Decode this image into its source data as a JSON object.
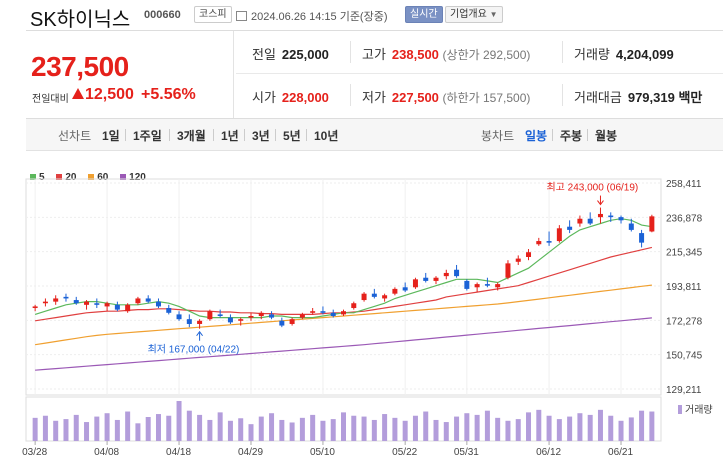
{
  "header": {
    "name": "SK하이닉스",
    "code": "000660",
    "market": "코스피",
    "timestamp": "2024.06.26 14:15 기준(장중)",
    "live_label": "실시간",
    "company_label": "기업개요"
  },
  "price": {
    "current": "237,500",
    "change_label": "전일대비",
    "change": "12,500",
    "change_pct": "+5.56%",
    "up_color": "#e5211b",
    "down_color": "#1b62d6"
  },
  "stats": {
    "prev_close_label": "전일",
    "prev_close": "225,000",
    "high_label": "고가",
    "high": "238,500",
    "upper_limit": "(상한가 292,500)",
    "volume_label": "거래량",
    "volume": "4,204,099",
    "open_label": "시가",
    "open": "228,000",
    "low_label": "저가",
    "low": "227,500",
    "lower_limit": "(하한가 157,500)",
    "amount_label": "거래대금",
    "amount": "979,319 백만"
  },
  "tabs": {
    "line_label": "선차트",
    "line_items": [
      "1일",
      "1주일",
      "3개월",
      "1년",
      "3년",
      "5년",
      "10년"
    ],
    "candle_label": "봉차트",
    "candle_items": [
      "일봉",
      "주봉",
      "월봉"
    ],
    "active_candle": 0
  },
  "chart_data": {
    "type": "candlestick",
    "legend": [
      {
        "name": "5",
        "color": "#5cb85c"
      },
      {
        "name": "20",
        "color": "#e04040"
      },
      {
        "name": "60",
        "color": "#f0a030"
      },
      {
        "name": "120",
        "color": "#9b59b6"
      }
    ],
    "y_ticks": [
      "258,411",
      "236,878",
      "215,345",
      "193,811",
      "172,278",
      "150,745",
      "129,211"
    ],
    "y_tick_values": [
      258411,
      236878,
      215345,
      193811,
      172278,
      150745,
      129211
    ],
    "x_ticks": [
      "03/28",
      "04/08",
      "04/18",
      "04/29",
      "05/10",
      "05/22",
      "05/31",
      "06/12",
      "06/21"
    ],
    "x_tick_index": [
      0,
      7,
      14,
      21,
      28,
      36,
      42,
      50,
      57
    ],
    "volume_label": "거래량",
    "high_annotation": "최고 243,000 (06/19)",
    "high_index": 55,
    "low_annotation": "최저 167,000 (04/22)",
    "low_index": 16,
    "candles": [
      [
        180000,
        182000,
        178000,
        181000
      ],
      [
        183000,
        186000,
        181000,
        184000
      ],
      [
        184000,
        188000,
        182000,
        186000
      ],
      [
        187000,
        189000,
        184000,
        186000
      ],
      [
        185000,
        187000,
        182000,
        183000
      ],
      [
        182000,
        185000,
        179000,
        184000
      ],
      [
        183000,
        186000,
        180000,
        182000
      ],
      [
        181000,
        184000,
        178000,
        183000
      ],
      [
        182000,
        184000,
        178000,
        179000
      ],
      [
        178000,
        183000,
        177000,
        182000
      ],
      [
        183000,
        187000,
        182000,
        186000
      ],
      [
        186000,
        188000,
        183000,
        184000
      ],
      [
        184000,
        186000,
        180000,
        181000
      ],
      [
        180000,
        182000,
        176000,
        177000
      ],
      [
        176000,
        178000,
        172000,
        173000
      ],
      [
        173000,
        176000,
        168000,
        170000
      ],
      [
        170000,
        173000,
        167000,
        172000
      ],
      [
        173000,
        179000,
        172000,
        178000
      ],
      [
        176000,
        179000,
        174000,
        175000
      ],
      [
        174000,
        176000,
        170000,
        171000
      ],
      [
        172000,
        174000,
        169000,
        173000
      ],
      [
        174000,
        177000,
        172000,
        175000
      ],
      [
        175000,
        178000,
        173000,
        177000
      ],
      [
        176000,
        178000,
        173000,
        174000
      ],
      [
        172000,
        174000,
        168000,
        169000
      ],
      [
        170000,
        174000,
        169000,
        173000
      ],
      [
        174000,
        177000,
        173000,
        176000
      ],
      [
        177000,
        180000,
        176000,
        178000
      ],
      [
        178000,
        181000,
        176000,
        177000
      ],
      [
        177000,
        179000,
        174000,
        175000
      ],
      [
        176000,
        179000,
        175000,
        178000
      ],
      [
        180000,
        184000,
        179000,
        183000
      ],
      [
        185000,
        190000,
        184000,
        189000
      ],
      [
        189000,
        192000,
        186000,
        187000
      ],
      [
        186000,
        189000,
        184000,
        188000
      ],
      [
        189000,
        193000,
        188000,
        192000
      ],
      [
        193000,
        196000,
        190000,
        191000
      ],
      [
        193000,
        199000,
        192000,
        198000
      ],
      [
        199000,
        202000,
        196000,
        197000
      ],
      [
        197000,
        200000,
        195000,
        199000
      ],
      [
        200000,
        204000,
        198000,
        202000
      ],
      [
        204000,
        207000,
        199000,
        200000
      ],
      [
        197000,
        198000,
        191000,
        192000
      ],
      [
        193000,
        196000,
        190000,
        195000
      ],
      [
        195000,
        199000,
        193000,
        194000
      ],
      [
        193000,
        196000,
        191000,
        195000
      ],
      [
        199000,
        210000,
        198000,
        208000
      ],
      [
        209000,
        213000,
        207000,
        211000
      ],
      [
        212000,
        217000,
        210000,
        215000
      ],
      [
        220000,
        224000,
        219000,
        222000
      ],
      [
        222000,
        228000,
        219000,
        221000
      ],
      [
        222000,
        232000,
        221000,
        230000
      ],
      [
        231000,
        235000,
        227000,
        229000
      ],
      [
        233000,
        238000,
        231000,
        236000
      ],
      [
        236000,
        240000,
        232000,
        233000
      ],
      [
        237000,
        243000,
        233000,
        239000
      ],
      [
        238000,
        240000,
        234000,
        237000
      ],
      [
        237000,
        238000,
        233000,
        235000
      ],
      [
        233000,
        236000,
        228000,
        229000
      ],
      [
        227000,
        229000,
        218000,
        221000
      ],
      [
        228000,
        238500,
        227500,
        237500
      ]
    ],
    "ma5": [
      176000,
      178000,
      180000,
      182000,
      183000,
      184000,
      184000,
      183000,
      182000,
      182000,
      182000,
      183000,
      184000,
      183000,
      181000,
      178000,
      175000,
      174000,
      174000,
      174000,
      174000,
      174000,
      174000,
      175000,
      175000,
      174000,
      174000,
      174000,
      175000,
      176000,
      177000,
      177000,
      179000,
      181000,
      183000,
      186000,
      188000,
      190000,
      192000,
      194000,
      196000,
      198000,
      198000,
      198000,
      197000,
      196000,
      199000,
      202000,
      205000,
      210000,
      215000,
      220000,
      225000,
      229000,
      231000,
      233000,
      235000,
      236000,
      235000,
      232000,
      231000
    ],
    "ma20": [
      172000,
      173000,
      174000,
      175000,
      176000,
      177000,
      177500,
      178000,
      178000,
      178500,
      179000,
      179000,
      179500,
      179500,
      179000,
      178500,
      178000,
      178000,
      177500,
      177500,
      177000,
      177000,
      176500,
      176500,
      176000,
      176000,
      176000,
      176000,
      176500,
      177000,
      177000,
      177500,
      178000,
      179000,
      180000,
      181000,
      182000,
      183000,
      184000,
      185000,
      187000,
      188000,
      189000,
      190000,
      191000,
      192000,
      193000,
      194000,
      196000,
      198000,
      200000,
      202000,
      204000,
      206000,
      208000,
      210000,
      212000,
      213500,
      215000,
      216500,
      218000
    ],
    "ma60": [
      157000,
      158000,
      159000,
      160000,
      161000,
      162000,
      162800,
      163500,
      164000,
      164500,
      165000,
      165500,
      166000,
      166500,
      167000,
      167500,
      168000,
      168500,
      169000,
      169500,
      170000,
      170500,
      171000,
      171500,
      172000,
      172500,
      173000,
      173500,
      174000,
      174500,
      175000,
      175500,
      176000,
      176500,
      177000,
      177500,
      178000,
      178500,
      179000,
      179500,
      180000,
      180500,
      181000,
      181500,
      182000,
      182500,
      183200,
      184000,
      184800,
      185600,
      186400,
      187200,
      188000,
      188800,
      189600,
      190400,
      191200,
      192000,
      192800,
      193600,
      194400
    ],
    "ma120": [
      141000,
      141500,
      142000,
      142500,
      143000,
      143500,
      144000,
      144500,
      145000,
      145500,
      146000,
      146500,
      147000,
      147500,
      148000,
      148500,
      149000,
      149500,
      150000,
      150500,
      151000,
      151500,
      152000,
      152500,
      153000,
      153500,
      154000,
      154500,
      155000,
      155500,
      156000,
      156500,
      157000,
      157600,
      158200,
      158800,
      159400,
      160000,
      160600,
      161200,
      161800,
      162400,
      163000,
      163600,
      164200,
      164800,
      165400,
      166000,
      166600,
      167200,
      167800,
      168400,
      169000,
      169600,
      170200,
      170800,
      171400,
      172000,
      172600,
      173200,
      173800
    ],
    "volume": [
      55,
      60,
      48,
      52,
      62,
      45,
      58,
      66,
      50,
      70,
      42,
      57,
      64,
      60,
      95,
      72,
      62,
      50,
      68,
      48,
      54,
      40,
      58,
      66,
      50,
      44,
      55,
      62,
      48,
      52,
      68,
      60,
      58,
      50,
      64,
      55,
      48,
      60,
      70,
      50,
      45,
      58,
      66,
      62,
      72,
      55,
      48,
      52,
      68,
      74,
      60,
      52,
      58,
      66,
      62,
      74,
      60,
      48,
      56,
      72,
      70
    ]
  }
}
